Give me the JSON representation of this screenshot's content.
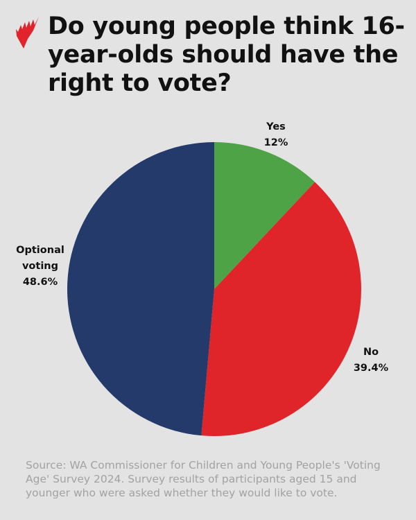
{
  "title": "Do young people think 16-year-olds should have the right to vote?",
  "logo": {
    "name": "SBS logo",
    "color": "#e3232b"
  },
  "chart_data": {
    "type": "pie",
    "title": "Do young people think 16-year-olds should have the right to vote?",
    "start": "12 o'clock, clockwise",
    "slices": [
      {
        "name": "Yes",
        "value": 12,
        "label": "12%",
        "color": "#4ea346"
      },
      {
        "name": "No",
        "value": 39.4,
        "label": "39.4%",
        "color": "#e0252a"
      },
      {
        "name": "Optional voting",
        "name_lines": [
          "Optional",
          "voting"
        ],
        "value": 48.6,
        "label": "48.6%",
        "color": "#243a6b"
      }
    ]
  },
  "source": "Source: WA Commissioner for Children and Young People's 'Voting Age' Survey 2024. Survey results of participants aged 15 and younger who were asked whether they would like to vote."
}
